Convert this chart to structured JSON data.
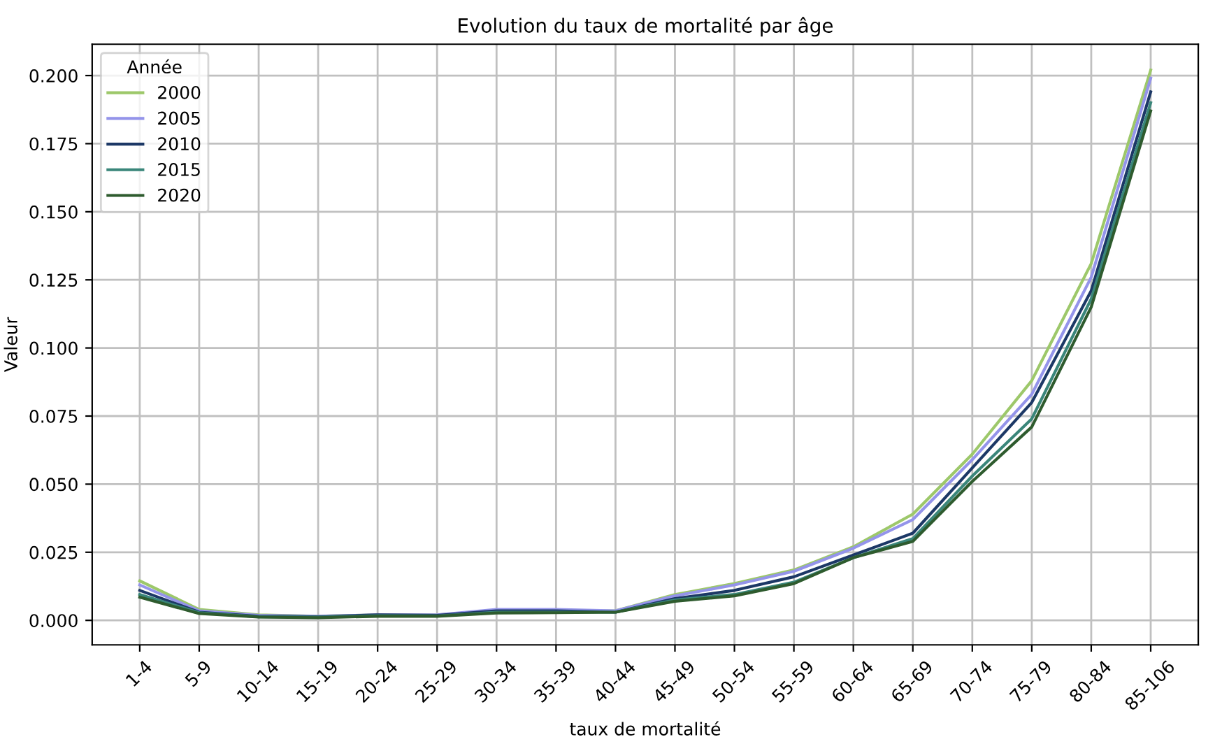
{
  "chart_data": {
    "type": "line",
    "title": "Evolution du taux de mortalité par âge",
    "xlabel": "taux de mortalité",
    "ylabel": "Valeur",
    "legend_title": "Année",
    "categories": [
      "1-4",
      "5-9",
      "10-14",
      "15-19",
      "20-24",
      "25-29",
      "30-34",
      "35-39",
      "40-44",
      "45-49",
      "50-54",
      "55-59",
      "60-64",
      "65-69",
      "70-74",
      "75-79",
      "80-84",
      "85-106"
    ],
    "series": [
      {
        "name": "2000",
        "color": "#9dc86a",
        "values": [
          0.0145,
          0.004,
          0.002,
          0.0015,
          0.002,
          0.002,
          0.0035,
          0.0035,
          0.0035,
          0.0095,
          0.0135,
          0.0185,
          0.027,
          0.039,
          0.061,
          0.088,
          0.131,
          0.202
        ]
      },
      {
        "name": "2005",
        "color": "#9494ea",
        "values": [
          0.013,
          0.0035,
          0.0018,
          0.0015,
          0.002,
          0.002,
          0.004,
          0.004,
          0.0035,
          0.009,
          0.013,
          0.018,
          0.0265,
          0.037,
          0.059,
          0.083,
          0.126,
          0.199
        ]
      },
      {
        "name": "2010",
        "color": "#1c3866",
        "values": [
          0.011,
          0.003,
          0.0015,
          0.0013,
          0.002,
          0.0018,
          0.0035,
          0.0035,
          0.003,
          0.008,
          0.011,
          0.016,
          0.024,
          0.032,
          0.056,
          0.08,
          0.121,
          0.194
        ]
      },
      {
        "name": "2015",
        "color": "#3a867a",
        "values": [
          0.0095,
          0.0028,
          0.0013,
          0.0012,
          0.0017,
          0.0016,
          0.003,
          0.003,
          0.003,
          0.0075,
          0.0095,
          0.014,
          0.023,
          0.03,
          0.053,
          0.074,
          0.118,
          0.19
        ]
      },
      {
        "name": "2020",
        "color": "#2e5b2e",
        "values": [
          0.0085,
          0.0025,
          0.0012,
          0.001,
          0.0015,
          0.0015,
          0.0027,
          0.0028,
          0.003,
          0.007,
          0.009,
          0.0135,
          0.023,
          0.029,
          0.051,
          0.071,
          0.115,
          0.187
        ]
      }
    ],
    "ylim": [
      -0.009,
      0.2115
    ],
    "yticks": [
      {
        "value": 0,
        "label": "0.000"
      },
      {
        "value": 0.025,
        "label": "0.025"
      },
      {
        "value": 0.05,
        "label": "0.050"
      },
      {
        "value": 0.075,
        "label": "0.075"
      },
      {
        "value": 0.1,
        "label": "0.100"
      },
      {
        "value": 0.125,
        "label": "0.125"
      },
      {
        "value": 0.15,
        "label": "0.150"
      },
      {
        "value": 0.175,
        "label": "0.175"
      },
      {
        "value": 0.2,
        "label": "0.200"
      }
    ],
    "grid": true,
    "legend": "top left",
    "marker": "none",
    "line_style": "solid"
  }
}
